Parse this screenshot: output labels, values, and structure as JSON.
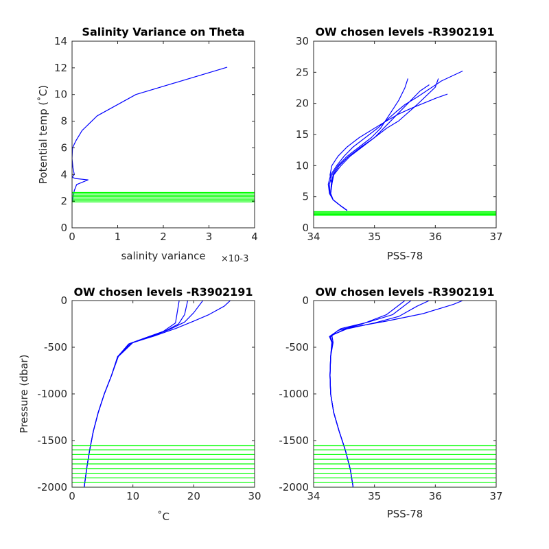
{
  "colors": {
    "profile": "#0000ff",
    "levels": "#00ff00",
    "axis": "#262626",
    "background": "#ffffff"
  },
  "chart_data": [
    {
      "id": "salvar",
      "type": "line",
      "title": "Salinity Variance on Theta",
      "xlabel": "salinity variance",
      "x_exponent": "×10-3",
      "ylabel": "Potential temp (˚C)",
      "xlim": [
        0,
        4
      ],
      "ylim": [
        0,
        14
      ],
      "x_ticks": [
        0,
        1,
        2,
        3,
        4
      ],
      "y_ticks": [
        0,
        2,
        4,
        6,
        8,
        10,
        12,
        14
      ],
      "x_tick_labels": [
        "0",
        "1",
        "2",
        "3",
        "4"
      ],
      "y_tick_labels": [
        "0",
        "2",
        "4",
        "6",
        "8",
        "10",
        "12",
        "14"
      ],
      "series": [
        {
          "kind": "profile",
          "x": [
            3.4,
            1.4,
            0.55,
            0.22,
            0.08,
            0.01,
            0.0,
            0.02,
            0.05,
            0.0,
            0.07,
            0.35,
            0.1,
            0.05,
            0.02,
            0.01
          ],
          "y": [
            12.05,
            10.0,
            8.4,
            7.3,
            6.5,
            6.0,
            5.2,
            4.5,
            4.0,
            3.8,
            3.7,
            3.6,
            3.25,
            2.8,
            2.3,
            1.95
          ]
        }
      ],
      "hlines": {
        "kind": "levels",
        "values": [
          1.95,
          2.05,
          2.15,
          2.25,
          2.35,
          2.45,
          2.55,
          2.65
        ]
      }
    },
    {
      "id": "ts",
      "type": "line",
      "title": "OW chosen levels -R3902191",
      "xlabel": "PSS-78",
      "ylabel": "",
      "xlim": [
        34,
        37
      ],
      "ylim": [
        0,
        30
      ],
      "x_ticks": [
        34,
        35,
        36,
        37
      ],
      "y_ticks": [
        0,
        5,
        10,
        15,
        20,
        25,
        30
      ],
      "x_tick_labels": [
        "34",
        "35",
        "36",
        "37"
      ],
      "y_tick_labels": [
        "0",
        "5",
        "10",
        "15",
        "20",
        "25",
        "30"
      ],
      "series": [
        {
          "kind": "profile",
          "x": [
            34.55,
            34.45,
            34.32,
            34.28,
            34.3,
            34.27,
            34.3,
            34.4,
            34.55,
            34.75,
            35.0,
            35.2,
            35.4,
            35.6,
            35.8,
            36.0,
            36.2
          ],
          "y": [
            2.8,
            3.5,
            4.5,
            5.5,
            7.0,
            8.5,
            10.0,
            11.5,
            13.0,
            14.5,
            16.0,
            17.2,
            18.3,
            19.2,
            20.0,
            20.8,
            21.5
          ]
        },
        {
          "kind": "profile",
          "x": [
            34.55,
            34.45,
            34.32,
            34.26,
            34.24,
            34.28,
            34.38,
            34.5,
            34.65,
            34.85,
            35.05,
            35.2,
            35.35,
            35.5,
            35.7,
            35.9,
            36.1,
            36.45
          ],
          "y": [
            2.8,
            3.5,
            4.5,
            5.5,
            7.0,
            8.5,
            10.0,
            11.5,
            13.0,
            14.5,
            16.0,
            17.3,
            18.6,
            19.8,
            21.0,
            22.3,
            23.6,
            25.2
          ]
        },
        {
          "kind": "profile",
          "x": [
            34.55,
            34.45,
            34.32,
            34.28,
            34.3,
            34.33,
            34.45,
            34.6,
            34.8,
            35.0,
            35.15,
            35.3,
            35.45,
            35.6,
            35.75,
            35.9
          ],
          "y": [
            2.8,
            3.5,
            4.5,
            5.5,
            7.0,
            8.5,
            10.0,
            11.5,
            13.0,
            14.5,
            16.0,
            17.5,
            19.0,
            20.5,
            22.0,
            23.0
          ]
        },
        {
          "kind": "profile",
          "x": [
            34.55,
            34.45,
            34.32,
            34.27,
            34.26,
            34.3,
            34.4,
            34.55,
            34.75,
            34.95,
            35.1,
            35.2,
            35.3,
            35.4,
            35.5,
            35.55
          ],
          "y": [
            2.8,
            3.5,
            4.5,
            5.5,
            7.0,
            8.5,
            10.0,
            11.5,
            13.0,
            14.5,
            16.0,
            17.5,
            19.0,
            20.5,
            22.5,
            24.0
          ]
        },
        {
          "kind": "profile",
          "x": [
            34.55,
            34.45,
            34.32,
            34.28,
            34.29,
            34.32,
            34.42,
            34.58,
            34.78,
            35.0,
            35.2,
            35.4,
            35.55,
            35.7,
            35.85,
            36.0,
            36.05
          ],
          "y": [
            2.8,
            3.5,
            4.5,
            5.5,
            7.0,
            8.5,
            10.0,
            11.5,
            13.0,
            14.5,
            16.0,
            17.2,
            18.5,
            19.8,
            21.2,
            22.6,
            24.0
          ]
        }
      ],
      "hlines": {
        "kind": "levels",
        "values": [
          2.0,
          2.15,
          2.3,
          2.45,
          2.6
        ]
      }
    },
    {
      "id": "ptemp",
      "type": "line",
      "title": "OW chosen levels -R3902191",
      "xlabel": "˚C",
      "ylabel": "Pressure (dbar)",
      "xlim": [
        0,
        30
      ],
      "ylim": [
        -2000,
        0
      ],
      "x_ticks": [
        0,
        10,
        20,
        30
      ],
      "y_ticks": [
        -2000,
        -1500,
        -1000,
        -500,
        0
      ],
      "x_tick_labels": [
        "0",
        "10",
        "20",
        "30"
      ],
      "y_tick_labels": [
        "-2000",
        "-1500",
        "-1000",
        "-500",
        "0"
      ],
      "series": [
        {
          "kind": "profile",
          "x": [
            2.0,
            2.4,
            2.9,
            3.5,
            4.3,
            5.3,
            6.5,
            7.5,
            9.5,
            12.5,
            15.5,
            17.5,
            18.5,
            19.0
          ],
          "y": [
            -2000,
            -1800,
            -1600,
            -1400,
            -1200,
            -1000,
            -800,
            -600,
            -460,
            -390,
            -320,
            -250,
            -150,
            0
          ]
        },
        {
          "kind": "profile",
          "x": [
            2.0,
            2.4,
            2.9,
            3.5,
            4.3,
            5.3,
            6.5,
            7.6,
            10.0,
            13.5,
            17.0,
            20.0,
            22.5,
            25.0,
            26.0
          ],
          "y": [
            -2000,
            -1800,
            -1600,
            -1400,
            -1200,
            -1000,
            -800,
            -600,
            -450,
            -380,
            -300,
            -220,
            -150,
            -60,
            0
          ]
        },
        {
          "kind": "profile",
          "x": [
            2.0,
            2.4,
            2.9,
            3.5,
            4.3,
            5.3,
            6.5,
            7.5,
            9.8,
            13.0,
            16.0,
            18.5,
            20.0,
            21.5
          ],
          "y": [
            -2000,
            -1800,
            -1600,
            -1400,
            -1200,
            -1000,
            -800,
            -600,
            -455,
            -385,
            -310,
            -230,
            -130,
            0
          ]
        },
        {
          "kind": "profile",
          "x": [
            2.0,
            2.4,
            2.9,
            3.5,
            4.3,
            5.3,
            6.5,
            7.5,
            9.3,
            12.0,
            15.0,
            17.0,
            17.6
          ],
          "y": [
            -2000,
            -1800,
            -1600,
            -1400,
            -1200,
            -1000,
            -800,
            -600,
            -465,
            -400,
            -330,
            -240,
            0
          ]
        }
      ],
      "hlines": {
        "kind": "levels",
        "values": [
          -1555,
          -1600,
          -1650,
          -1700,
          -1750,
          -1800,
          -1850,
          -1900,
          -1950,
          -2000
        ]
      }
    },
    {
      "id": "psal",
      "type": "line",
      "title": "OW chosen levels -R3902191",
      "xlabel": "PSS-78",
      "ylabel": "",
      "xlim": [
        34,
        37
      ],
      "ylim": [
        -2000,
        0
      ],
      "x_ticks": [
        34,
        35,
        36,
        37
      ],
      "y_ticks": [
        -2000,
        -1500,
        -1000,
        -500,
        0
      ],
      "x_tick_labels": [
        "34",
        "35",
        "36",
        "37"
      ],
      "y_tick_labels": [
        "-2000",
        "-1500",
        "-1000",
        "-500",
        "0"
      ],
      "series": [
        {
          "kind": "profile",
          "x": [
            34.65,
            34.6,
            34.52,
            34.42,
            34.33,
            34.28,
            34.27,
            34.28,
            34.3,
            34.27,
            34.45,
            34.9,
            35.3,
            35.6
          ],
          "y": [
            -2000,
            -1800,
            -1600,
            -1400,
            -1200,
            -1000,
            -800,
            -600,
            -450,
            -380,
            -300,
            -230,
            -150,
            0
          ]
        },
        {
          "kind": "profile",
          "x": [
            34.65,
            34.6,
            34.52,
            34.42,
            34.33,
            34.28,
            34.27,
            34.28,
            34.32,
            34.3,
            34.6,
            35.2,
            35.8,
            36.3,
            36.45
          ],
          "y": [
            -2000,
            -1800,
            -1600,
            -1400,
            -1200,
            -1000,
            -800,
            -600,
            -450,
            -370,
            -290,
            -220,
            -140,
            -40,
            0
          ]
        },
        {
          "kind": "profile",
          "x": [
            34.65,
            34.6,
            34.52,
            34.42,
            34.33,
            34.28,
            34.27,
            34.28,
            34.3,
            34.26,
            34.5,
            35.0,
            35.4,
            35.7,
            35.9
          ],
          "y": [
            -2000,
            -1800,
            -1600,
            -1400,
            -1200,
            -1000,
            -800,
            -600,
            -450,
            -385,
            -310,
            -240,
            -170,
            -60,
            0
          ]
        },
        {
          "kind": "profile",
          "x": [
            34.65,
            34.6,
            34.52,
            34.42,
            34.33,
            34.28,
            34.27,
            34.28,
            34.31,
            34.28,
            34.4,
            34.8,
            35.2,
            35.5
          ],
          "y": [
            -2000,
            -1800,
            -1600,
            -1400,
            -1200,
            -1000,
            -800,
            -600,
            -450,
            -390,
            -320,
            -250,
            -150,
            0
          ]
        }
      ],
      "hlines": {
        "kind": "levels",
        "values": [
          -1555,
          -1600,
          -1650,
          -1700,
          -1750,
          -1800,
          -1850,
          -1900,
          -1950,
          -2000
        ]
      }
    }
  ]
}
